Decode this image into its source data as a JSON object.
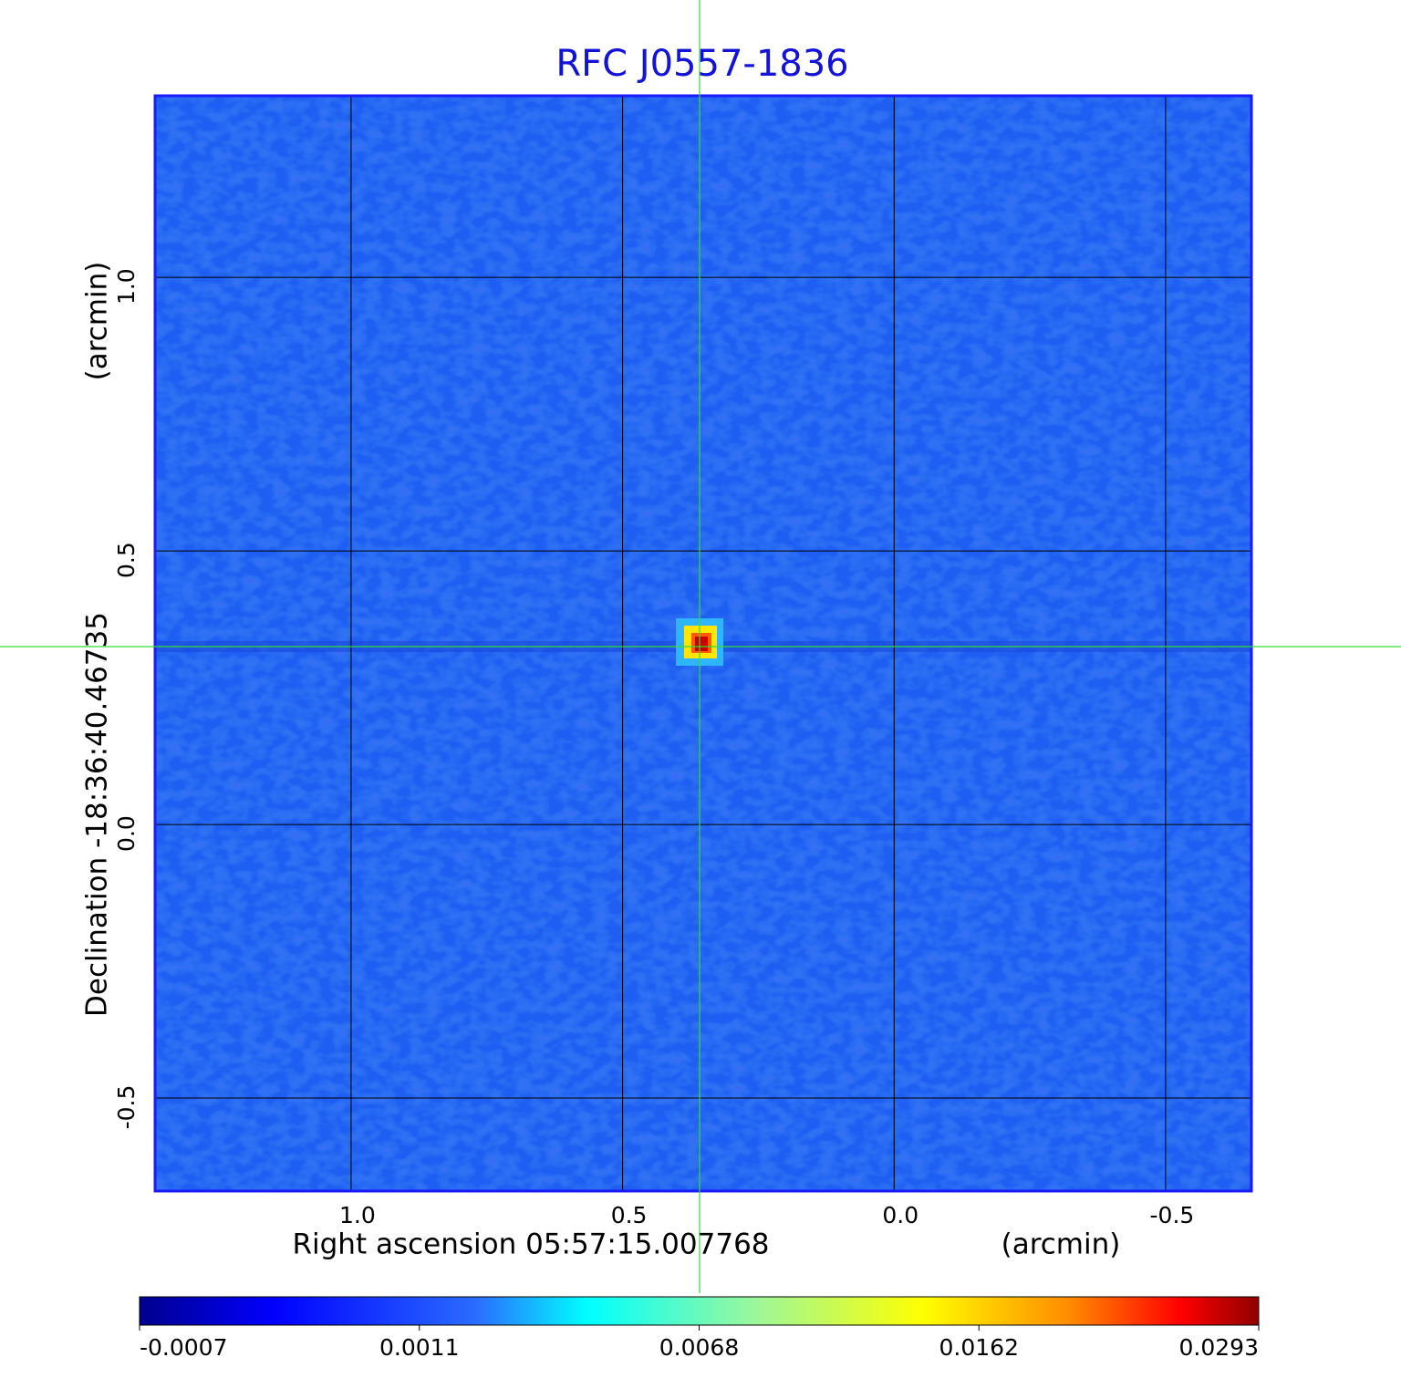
{
  "chart_data": {
    "type": "image",
    "title": "RFC J0557-1836",
    "x_label": "Right ascension  05:57:15.007768",
    "x_unit": "(arcmin)",
    "y_label": "Declination  -18:36:40.46735",
    "y_unit": "(arcmin)",
    "xlim": [
      1.361,
      -0.658
    ],
    "ylim": [
      -0.67,
      1.332
    ],
    "xticks": [
      {
        "value": 1,
        "label": "1.0"
      },
      0.5,
      {
        "value": 0,
        "label": "0.0"
      },
      -0.5
    ],
    "yticks": [
      -0.5,
      {
        "value": 0,
        "label": "0.0"
      },
      0.5,
      {
        "value": 1,
        "label": "1.0"
      }
    ],
    "grid": true,
    "colorbar_ticks": [
      -0.0007,
      0.0011,
      0.0068,
      0.0162,
      0.0293
    ]
  }
}
